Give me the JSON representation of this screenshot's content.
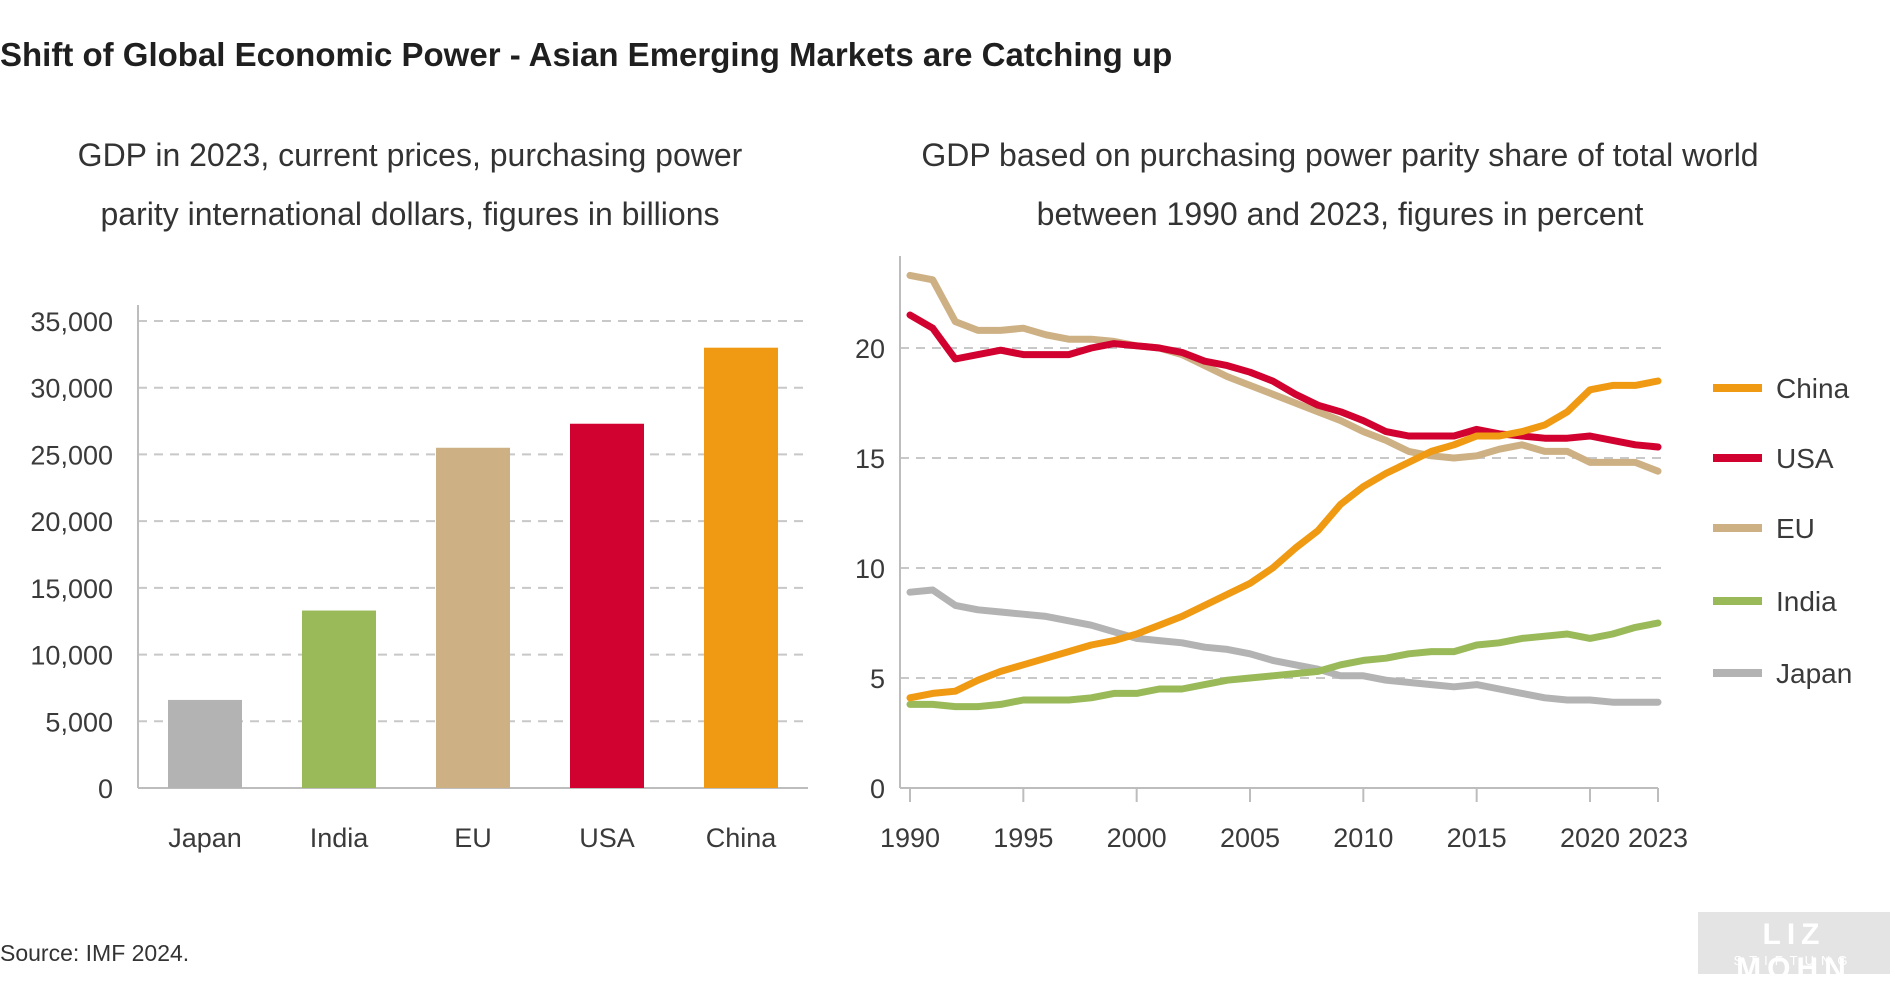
{
  "title": "Shift of Global Economic Power - Asian Emerging Markets are Catching up",
  "source": "Source: IMF 2024.",
  "logo": {
    "line1": "LIZ MOHN",
    "line2": "STIFTUNG"
  },
  "colors": {
    "China": "#ef9a12",
    "USA": "#d1022f",
    "EU": "#cdb184",
    "India": "#9aba5a",
    "Japan": "#b3b3b3"
  },
  "chart_data": [
    {
      "type": "bar",
      "title_lines": [
        "GDP in 2023, current prices, purchasing power",
        "parity international dollars, figures in billions"
      ],
      "categories": [
        "Japan",
        "India",
        "EU",
        "USA",
        "China"
      ],
      "values": [
        6600,
        13300,
        25500,
        27300,
        33000
      ],
      "ylim": [
        0,
        35000
      ],
      "yticks": [
        0,
        5000,
        10000,
        15000,
        20000,
        25000,
        30000,
        35000
      ],
      "ytick_labels": [
        "0",
        "5,000",
        "10,000",
        "15,000",
        "20,000",
        "25,000",
        "30,000",
        "35,000"
      ],
      "grid": true
    },
    {
      "type": "line",
      "title_lines": [
        "GDP based on purchasing power parity share of total world",
        "between 1990 and 2023, figures in percent"
      ],
      "x": [
        1990,
        1991,
        1992,
        1993,
        1994,
        1995,
        1996,
        1997,
        1998,
        1999,
        2000,
        2001,
        2002,
        2003,
        2004,
        2005,
        2006,
        2007,
        2008,
        2009,
        2010,
        2011,
        2012,
        2013,
        2014,
        2015,
        2016,
        2017,
        2018,
        2019,
        2020,
        2021,
        2022,
        2023
      ],
      "series": [
        {
          "name": "China",
          "values": [
            4.1,
            4.3,
            4.4,
            4.9,
            5.3,
            5.6,
            5.9,
            6.2,
            6.5,
            6.7,
            7.0,
            7.4,
            7.8,
            8.3,
            8.8,
            9.3,
            10.0,
            10.9,
            11.7,
            12.9,
            13.7,
            14.3,
            14.8,
            15.3,
            15.6,
            16.0,
            16.0,
            16.2,
            16.5,
            17.1,
            18.1,
            18.3,
            18.3,
            18.5
          ]
        },
        {
          "name": "USA",
          "values": [
            21.5,
            20.9,
            19.5,
            19.7,
            19.9,
            19.7,
            19.7,
            19.7,
            20.0,
            20.2,
            20.1,
            20.0,
            19.8,
            19.4,
            19.2,
            18.9,
            18.5,
            17.9,
            17.4,
            17.1,
            16.7,
            16.2,
            16.0,
            16.0,
            16.0,
            16.3,
            16.1,
            16.0,
            15.9,
            15.9,
            16.0,
            15.8,
            15.6,
            15.5
          ]
        },
        {
          "name": "EU",
          "values": [
            23.3,
            23.1,
            21.2,
            20.8,
            20.8,
            20.9,
            20.6,
            20.4,
            20.4,
            20.3,
            20.1,
            20.0,
            19.7,
            19.2,
            18.7,
            18.3,
            17.9,
            17.5,
            17.1,
            16.7,
            16.2,
            15.8,
            15.3,
            15.1,
            15.0,
            15.1,
            15.4,
            15.6,
            15.3,
            15.3,
            14.8,
            14.8,
            14.8,
            14.4
          ]
        },
        {
          "name": "India",
          "values": [
            3.8,
            3.8,
            3.7,
            3.7,
            3.8,
            4.0,
            4.0,
            4.0,
            4.1,
            4.3,
            4.3,
            4.5,
            4.5,
            4.7,
            4.9,
            5.0,
            5.1,
            5.2,
            5.3,
            5.6,
            5.8,
            5.9,
            6.1,
            6.2,
            6.2,
            6.5,
            6.6,
            6.8,
            6.9,
            7.0,
            6.8,
            7.0,
            7.3,
            7.5
          ]
        },
        {
          "name": "Japan",
          "values": [
            8.9,
            9.0,
            8.3,
            8.1,
            8.0,
            7.9,
            7.8,
            7.6,
            7.4,
            7.1,
            6.8,
            6.7,
            6.6,
            6.4,
            6.3,
            6.1,
            5.8,
            5.6,
            5.4,
            5.1,
            5.1,
            4.9,
            4.8,
            4.7,
            4.6,
            4.7,
            4.5,
            4.3,
            4.1,
            4.0,
            4.0,
            3.9,
            3.9,
            3.9
          ]
        }
      ],
      "xticks": [
        1990,
        1995,
        2000,
        2005,
        2010,
        2015,
        2020,
        2023
      ],
      "xlim": [
        1990,
        2023
      ],
      "yticks": [
        0,
        5,
        10,
        15,
        20
      ],
      "ylim": [
        0,
        24
      ],
      "legend": [
        "China",
        "USA",
        "EU",
        "India",
        "Japan"
      ],
      "legend_position": "right",
      "grid": true
    }
  ]
}
